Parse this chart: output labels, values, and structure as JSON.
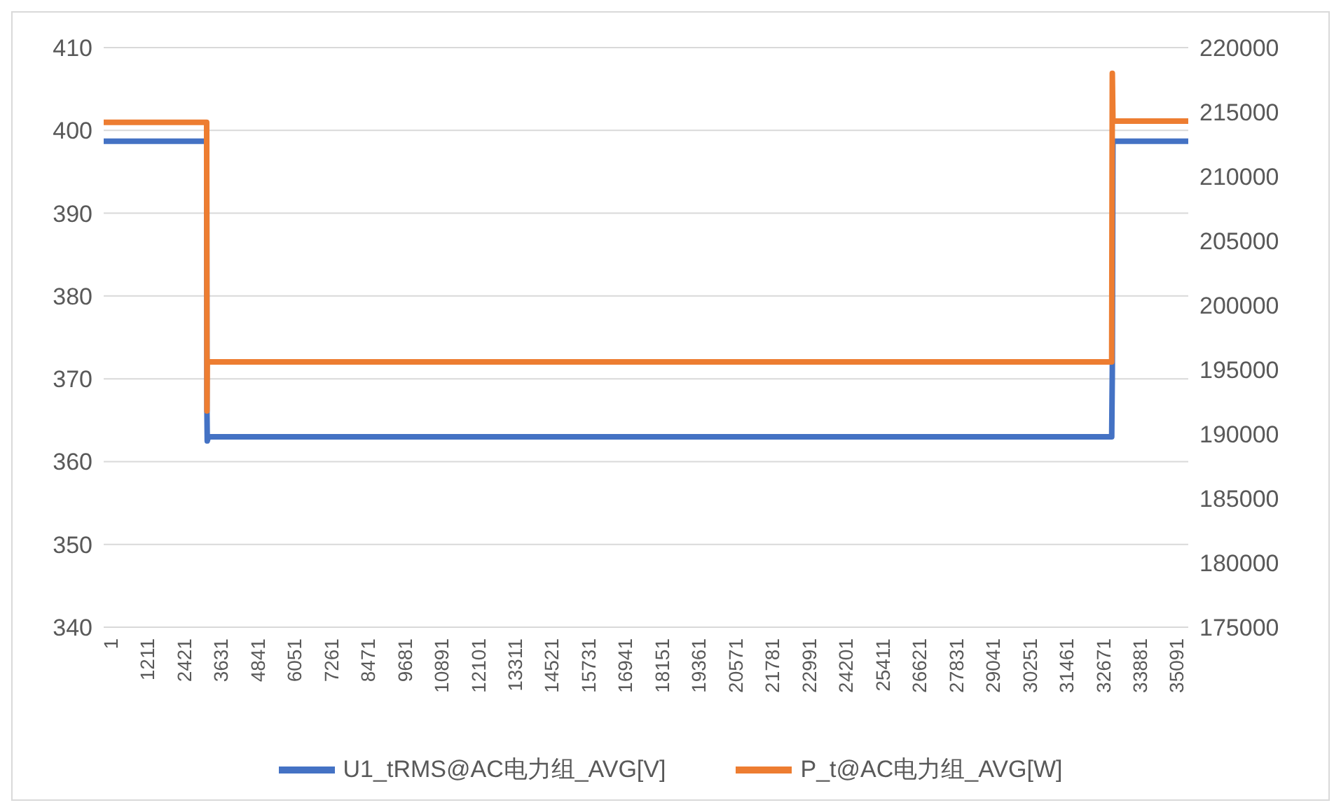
{
  "chart_data": {
    "type": "line",
    "xlim": [
      1,
      35700
    ],
    "xticks": [
      1,
      1211,
      2421,
      3631,
      4841,
      6051,
      7261,
      8471,
      9681,
      10891,
      12101,
      13311,
      14521,
      15731,
      16941,
      18151,
      19361,
      20571,
      21781,
      22991,
      24201,
      25411,
      26621,
      27831,
      29041,
      30251,
      31461,
      32671,
      33881,
      35091
    ],
    "ylim": [
      340,
      410
    ],
    "yticks": [
      340,
      350,
      360,
      370,
      380,
      390,
      400,
      410
    ],
    "y2lim": [
      175000,
      220000
    ],
    "y2ticks": [
      175000,
      180000,
      185000,
      190000,
      195000,
      200000,
      205000,
      210000,
      215000,
      220000
    ],
    "grid": "y",
    "legend": "bottom",
    "marker": "none",
    "line_style": "solid",
    "series": [
      {
        "name": "U1_tRMS@AC电力组_AVG[V]",
        "color": "#4472c4",
        "x": [
          1,
          3390,
          3400,
          3410,
          3450,
          33180,
          33200,
          33220,
          35700
        ],
        "values": [
          398.7,
          398.7,
          366,
          362.5,
          363,
          363,
          371,
          398.7,
          398.7
        ]
      },
      {
        "name": "P_t@AC电力组_AVG[W]",
        "color": "#ed7d31",
        "axis": "y2",
        "x": [
          1,
          3390,
          3400,
          3410,
          33180,
          33200,
          33220,
          35700
        ],
        "values": [
          214200,
          214200,
          191800,
          195600,
          195600,
          218000,
          214300,
          214300
        ]
      }
    ]
  }
}
